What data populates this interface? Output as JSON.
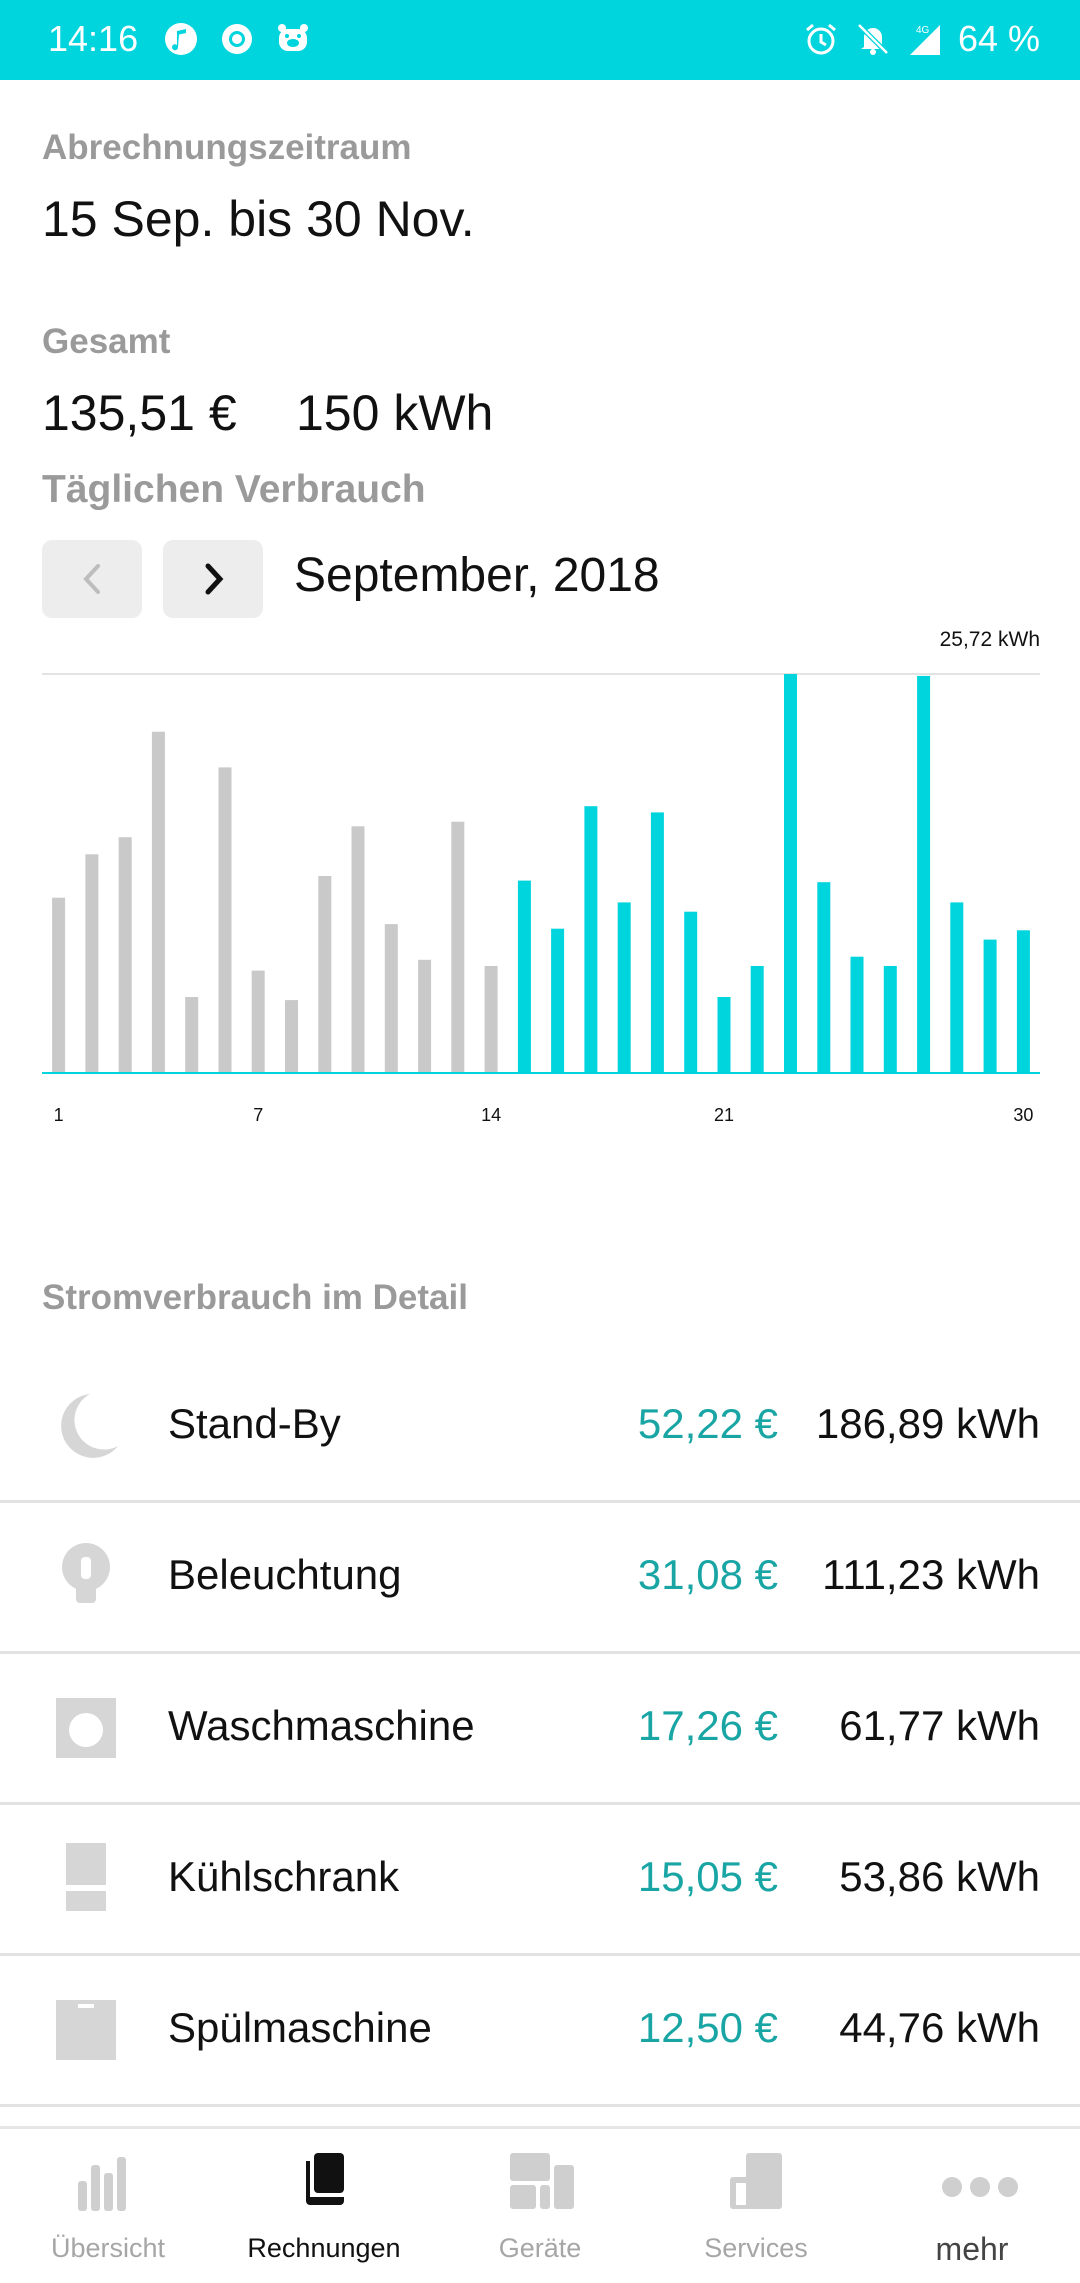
{
  "status_bar": {
    "time": "14:16",
    "battery": "64 %",
    "network": "4G",
    "left_icons": [
      "music-note-icon",
      "circle-o-icon",
      "pig-icon"
    ],
    "right_icons": [
      "alarm-icon",
      "bell-off-icon",
      "signal-icon",
      "battery-icon"
    ]
  },
  "billing": {
    "period_label": "Abrechnungszeitraum",
    "period_value": "15 Sep. bis 30 Nov.",
    "total_label": "Gesamt",
    "total_eur": "135,51 €",
    "total_kwh": "150 kWh"
  },
  "daily": {
    "label": "Täglichen Verbrauch",
    "month": "September, 2018"
  },
  "chart_data": {
    "type": "bar",
    "max_label": "25,72 kWh",
    "ymax": 25.72,
    "ylim": [
      0,
      25.72
    ],
    "categories": [
      1,
      2,
      3,
      4,
      5,
      6,
      7,
      8,
      9,
      10,
      11,
      12,
      13,
      14,
      15,
      16,
      17,
      18,
      19,
      20,
      21,
      22,
      23,
      24,
      25,
      26,
      27,
      28,
      29,
      30
    ],
    "tick_labels": [
      {
        "label": "1",
        "day": 1
      },
      {
        "label": "7",
        "day": 7
      },
      {
        "label": "14",
        "day": 14
      },
      {
        "label": "21",
        "day": 21
      },
      {
        "label": "30",
        "day": 30
      }
    ],
    "series": [
      {
        "color": "#c9c9c9",
        "values": [
          11.3,
          14.1,
          15.2,
          22.0,
          4.9,
          19.7,
          6.6,
          4.7,
          12.7,
          15.9,
          9.6,
          7.3,
          16.2,
          6.9,
          null,
          null,
          null,
          null,
          null,
          null,
          null,
          null,
          null,
          null,
          null,
          null,
          null,
          null,
          null,
          null
        ]
      },
      {
        "color": "#00d4dd",
        "values": [
          null,
          null,
          null,
          null,
          null,
          null,
          null,
          null,
          null,
          null,
          null,
          null,
          null,
          null,
          12.4,
          9.3,
          17.2,
          11.0,
          16.8,
          10.4,
          4.9,
          6.9,
          25.72,
          12.3,
          7.5,
          6.9,
          25.6,
          11.0,
          8.6,
          9.2
        ]
      }
    ],
    "grid": false
  },
  "detail": {
    "label": "Stromverbrauch im Detail",
    "rows": [
      {
        "icon": "moon-icon",
        "name": "Stand-By",
        "eur": "52,22 €",
        "kwh": "186,89 kWh"
      },
      {
        "icon": "bulb-icon",
        "name": "Beleuchtung",
        "eur": "31,08 €",
        "kwh": "111,23 kWh"
      },
      {
        "icon": "washing-machine-icon",
        "name": "Waschmaschine",
        "eur": "17,26 €",
        "kwh": "61,77 kWh"
      },
      {
        "icon": "fridge-icon",
        "name": "Kühlschrank",
        "eur": "15,05 €",
        "kwh": "53,86 kWh"
      },
      {
        "icon": "dishwasher-icon",
        "name": "Spülmaschine",
        "eur": "12,50 €",
        "kwh": "44,76 kWh"
      }
    ]
  },
  "nav": {
    "active": "Rechnungen",
    "items": [
      {
        "label": "Übersicht",
        "icon": "bar-chart-icon"
      },
      {
        "label": "Rechnungen",
        "icon": "documents-icon"
      },
      {
        "label": "Geräte",
        "icon": "devices-icon"
      },
      {
        "label": "Services",
        "icon": "services-icon"
      },
      {
        "label": "mehr",
        "icon": "more-dots-icon"
      }
    ]
  },
  "colors": {
    "accent": "#00d4dd",
    "price": "#1aa5a5",
    "past_bar": "#c9c9c9",
    "label_grey": "#9a9a9a"
  }
}
